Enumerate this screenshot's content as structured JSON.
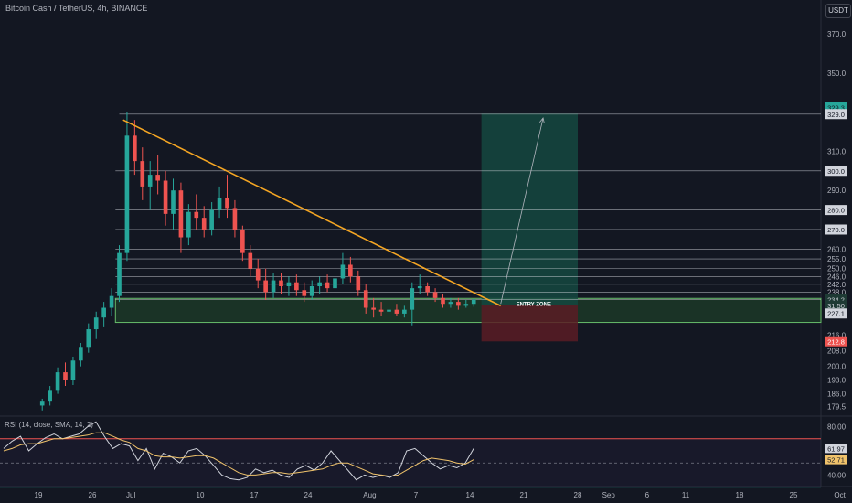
{
  "header": {
    "title": "Bitcoin Cash / TetherUS, 4h, BINANCE",
    "currency_button": "USDT"
  },
  "colors": {
    "background": "#131722",
    "up": "#26a69a",
    "down": "#ef5350",
    "trendline": "#f5a623",
    "zone_fill": "#2e7d32",
    "zone_border": "#66bb6a",
    "target_fill": "#15483f",
    "stop_fill": "#5b1c24",
    "rsi_line": "#d1d4dc",
    "rsi_ma": "#f0c36b"
  },
  "chart_data": [
    {
      "type": "candlestick",
      "name": "price",
      "ylim": [
        176,
        378
      ],
      "x_dates": [
        "Jun 19",
        "Aug 28"
      ],
      "y_ticks": [
        370.0,
        350.0,
        310.0,
        290.0,
        260.0,
        255.0,
        250.0,
        246.0,
        242.0,
        238.0,
        216.0,
        208.0,
        200.0,
        193.0,
        186.0,
        179.5
      ],
      "x_ticks": [
        "19",
        "26",
        "Jul",
        "10",
        "17",
        "24",
        "Aug",
        "7",
        "14",
        "21",
        "28",
        "Sep",
        "6",
        "11",
        "18",
        "25",
        "Oct"
      ],
      "horizontal_levels": [
        329.0,
        300.0,
        280.0,
        270.0,
        260.0,
        255.0,
        250.0,
        246.0,
        242.0,
        238.0,
        234.2
      ],
      "badges": [
        {
          "value": "329.3",
          "kind": "target"
        },
        {
          "value": "329.0",
          "kind": "level"
        },
        {
          "value": "300.0",
          "kind": "level"
        },
        {
          "value": "280.0",
          "kind": "level"
        },
        {
          "value": "270.0",
          "kind": "level"
        },
        {
          "value": "234.2",
          "kind": "last_price"
        },
        {
          "value": "31:50",
          "kind": "countdown"
        },
        {
          "value": "227.1",
          "kind": "level"
        },
        {
          "value": "212.8",
          "kind": "stop"
        }
      ],
      "candles": [
        [
          "Jun 19 00:00",
          180.0,
          183.5,
          177.5,
          182.0
        ],
        [
          "Jun 20 00:00",
          182.0,
          190.0,
          180.0,
          188.0
        ],
        [
          "Jun 21 00:00",
          188.0,
          199.5,
          186.0,
          197.0
        ],
        [
          "Jun 22 00:00",
          197.0,
          202.0,
          190.0,
          193.0
        ],
        [
          "Jun 23 00:00",
          193.0,
          205.0,
          190.5,
          203.0
        ],
        [
          "Jun 24 00:00",
          203.0,
          212.0,
          200.0,
          210.0
        ],
        [
          "Jun 25 00:00",
          210.0,
          222.0,
          207.0,
          219.0
        ],
        [
          "Jun 26 00:00",
          219.0,
          228.0,
          214.0,
          225.0
        ],
        [
          "Jun 27 00:00",
          225.0,
          233.0,
          220.0,
          230.0
        ],
        [
          "Jun 28 00:00",
          230.0,
          240.0,
          226.0,
          236.0
        ],
        [
          "Jun 29 00:00",
          236.0,
          262.0,
          233.0,
          258.0
        ],
        [
          "Jun 30 00:00",
          258.0,
          330.0,
          254.0,
          318.0
        ],
        [
          "Jul 1 00:00",
          318.0,
          326.0,
          298.0,
          305.0
        ],
        [
          "Jul 2 00:00",
          305.0,
          312.0,
          285.0,
          292.0
        ],
        [
          "Jul 3 00:00",
          292.0,
          305.0,
          280.0,
          298.0
        ],
        [
          "Jul 4 00:00",
          298.0,
          308.0,
          288.0,
          295.0
        ],
        [
          "Jul 5 00:00",
          295.0,
          300.0,
          272.0,
          278.0
        ],
        [
          "Jul 6 00:00",
          278.0,
          296.0,
          270.0,
          290.0
        ],
        [
          "Jul 7 00:00",
          290.0,
          294.0,
          258.0,
          266.0
        ],
        [
          "Jul 8 00:00",
          266.0,
          283.0,
          262.0,
          279.0
        ],
        [
          "Jul 9 00:00",
          279.0,
          288.0,
          270.0,
          276.0
        ],
        [
          "Jul 10 00:00",
          276.0,
          282.0,
          266.0,
          270.0
        ],
        [
          "Jul 11 00:00",
          270.0,
          284.0,
          267.0,
          280.0
        ],
        [
          "Jul 12 00:00",
          280.0,
          292.0,
          276.0,
          286.0
        ],
        [
          "Jul 13 00:00",
          286.0,
          298.0,
          276.0,
          281.0
        ],
        [
          "Jul 14 00:00",
          281.0,
          285.0,
          266.0,
          270.0
        ],
        [
          "Jul 15 00:00",
          270.0,
          272.0,
          254.0,
          258.0
        ],
        [
          "Jul 16 00:00",
          258.0,
          262.0,
          246.0,
          250.0
        ],
        [
          "Jul 17 00:00",
          250.0,
          255.0,
          240.0,
          244.0
        ],
        [
          "Jul 18 00:00",
          244.0,
          250.0,
          234.0,
          238.0
        ],
        [
          "Jul 19 00:00",
          238.0,
          248.0,
          235.0,
          244.0
        ],
        [
          "Jul 20 00:00",
          244.0,
          248.0,
          237.0,
          241.0
        ],
        [
          "Jul 21 00:00",
          241.0,
          246.0,
          236.0,
          243.0
        ],
        [
          "Jul 22 00:00",
          243.0,
          247.0,
          236.0,
          239.0
        ],
        [
          "Jul 23 00:00",
          239.0,
          243.0,
          233.0,
          236.0
        ],
        [
          "Jul 24 00:00",
          236.0,
          244.0,
          234.0,
          241.0
        ],
        [
          "Jul 25 00:00",
          241.0,
          246.0,
          237.0,
          243.0
        ],
        [
          "Jul 26 00:00",
          243.0,
          247.0,
          238.0,
          240.0
        ],
        [
          "Jul 27 00:00",
          240.0,
          247.0,
          238.0,
          245.0
        ],
        [
          "Jul 28 00:00",
          245.0,
          258.0,
          242.0,
          252.0
        ],
        [
          "Jul 29 00:00",
          252.0,
          256.0,
          243.0,
          246.0
        ],
        [
          "Jul 30 00:00",
          246.0,
          249.0,
          236.0,
          239.0
        ],
        [
          "Jul 31 00:00",
          239.0,
          242.0,
          227.0,
          230.0
        ],
        [
          "Aug 1 00:00",
          230.0,
          235.0,
          225.0,
          229.0
        ],
        [
          "Aug 2 00:00",
          229.0,
          233.0,
          226.0,
          228.0
        ],
        [
          "Aug 3 00:00",
          228.0,
          232.0,
          225.0,
          229.0
        ],
        [
          "Aug 4 00:00",
          229.0,
          232.0,
          226.0,
          227.0
        ],
        [
          "Aug 5 00:00",
          227.0,
          231.0,
          225.0,
          229.0
        ],
        [
          "Aug 6 00:00",
          229.0,
          243.0,
          221.0,
          240.0
        ],
        [
          "Aug 7 00:00",
          240.0,
          247.0,
          237.0,
          241.0
        ],
        [
          "Aug 8 00:00",
          241.0,
          243.0,
          236.0,
          238.0
        ],
        [
          "Aug 9 00:00",
          238.0,
          240.0,
          233.0,
          235.0
        ],
        [
          "Aug 10 00:00",
          235.0,
          237.0,
          230.0,
          232.0
        ],
        [
          "Aug 11 00:00",
          232.0,
          235.0,
          230.0,
          233.0
        ],
        [
          "Aug 12 00:00",
          233.0,
          235.0,
          229.0,
          231.0
        ],
        [
          "Aug 13 00:00",
          231.0,
          234.0,
          230.0,
          232.0
        ],
        [
          "Aug 14 00:00",
          232.0,
          234.5,
          230.5,
          234.2
        ]
      ],
      "trendline": [
        [
          "Jun 30 00:00",
          326.0
        ],
        [
          "Aug 18 00:00",
          231.0
        ]
      ],
      "support_zone": {
        "from": "Jun 29 00:00",
        "to": "Oct 1 00:00",
        "low": 222.5,
        "high": 234.8
      },
      "entry_label": "ENTRY ZONE",
      "target_box": {
        "from": "Aug 15 12:00",
        "to": "Aug 28 00:00",
        "low": 231.5,
        "high": 329.3
      },
      "stop_box": {
        "from": "Aug 15 12:00",
        "to": "Aug 28 00:00",
        "low": 212.8,
        "high": 231.5
      },
      "arrow": [
        [
          "Aug 18 00:00",
          232.0
        ],
        [
          "Aug 23 12:00",
          327.0
        ]
      ]
    },
    {
      "type": "line",
      "name": "RSI",
      "label": "RSI (14, close, SMA, 14, 2)",
      "ylim": [
        32,
        88
      ],
      "y_ticks": [
        80.0,
        40.0
      ],
      "bands": [
        70,
        50,
        30
      ],
      "value_badges": [
        {
          "value": "61.97",
          "kind": "rsi"
        },
        {
          "value": "52.71",
          "kind": "rsi_ma"
        }
      ],
      "rsi": [
        62,
        68,
        72,
        60,
        66,
        71,
        74,
        70,
        72,
        74,
        80,
        84,
        72,
        62,
        66,
        64,
        52,
        62,
        45,
        58,
        55,
        50,
        60,
        62,
        56,
        48,
        40,
        37,
        36,
        38,
        45,
        42,
        44,
        40,
        38,
        45,
        48,
        44,
        50,
        60,
        52,
        44,
        36,
        40,
        38,
        40,
        38,
        42,
        60,
        62,
        56,
        50,
        45,
        48,
        46,
        50,
        61.97
      ],
      "rsi_ma": [
        60,
        62,
        65,
        66,
        66,
        68,
        70,
        70,
        71,
        72,
        73,
        75,
        75,
        72,
        69,
        67,
        62,
        60,
        56,
        55,
        55,
        54,
        55,
        56,
        56,
        54,
        50,
        46,
        42,
        40,
        40,
        41,
        42,
        42,
        41,
        42,
        43,
        44,
        45,
        48,
        50,
        50,
        47,
        44,
        41,
        40,
        39,
        40,
        44,
        48,
        52,
        54,
        53,
        52,
        50,
        49,
        52.71
      ]
    }
  ],
  "rsi_label": "RSI (14, close, SMA, 14, 2)"
}
